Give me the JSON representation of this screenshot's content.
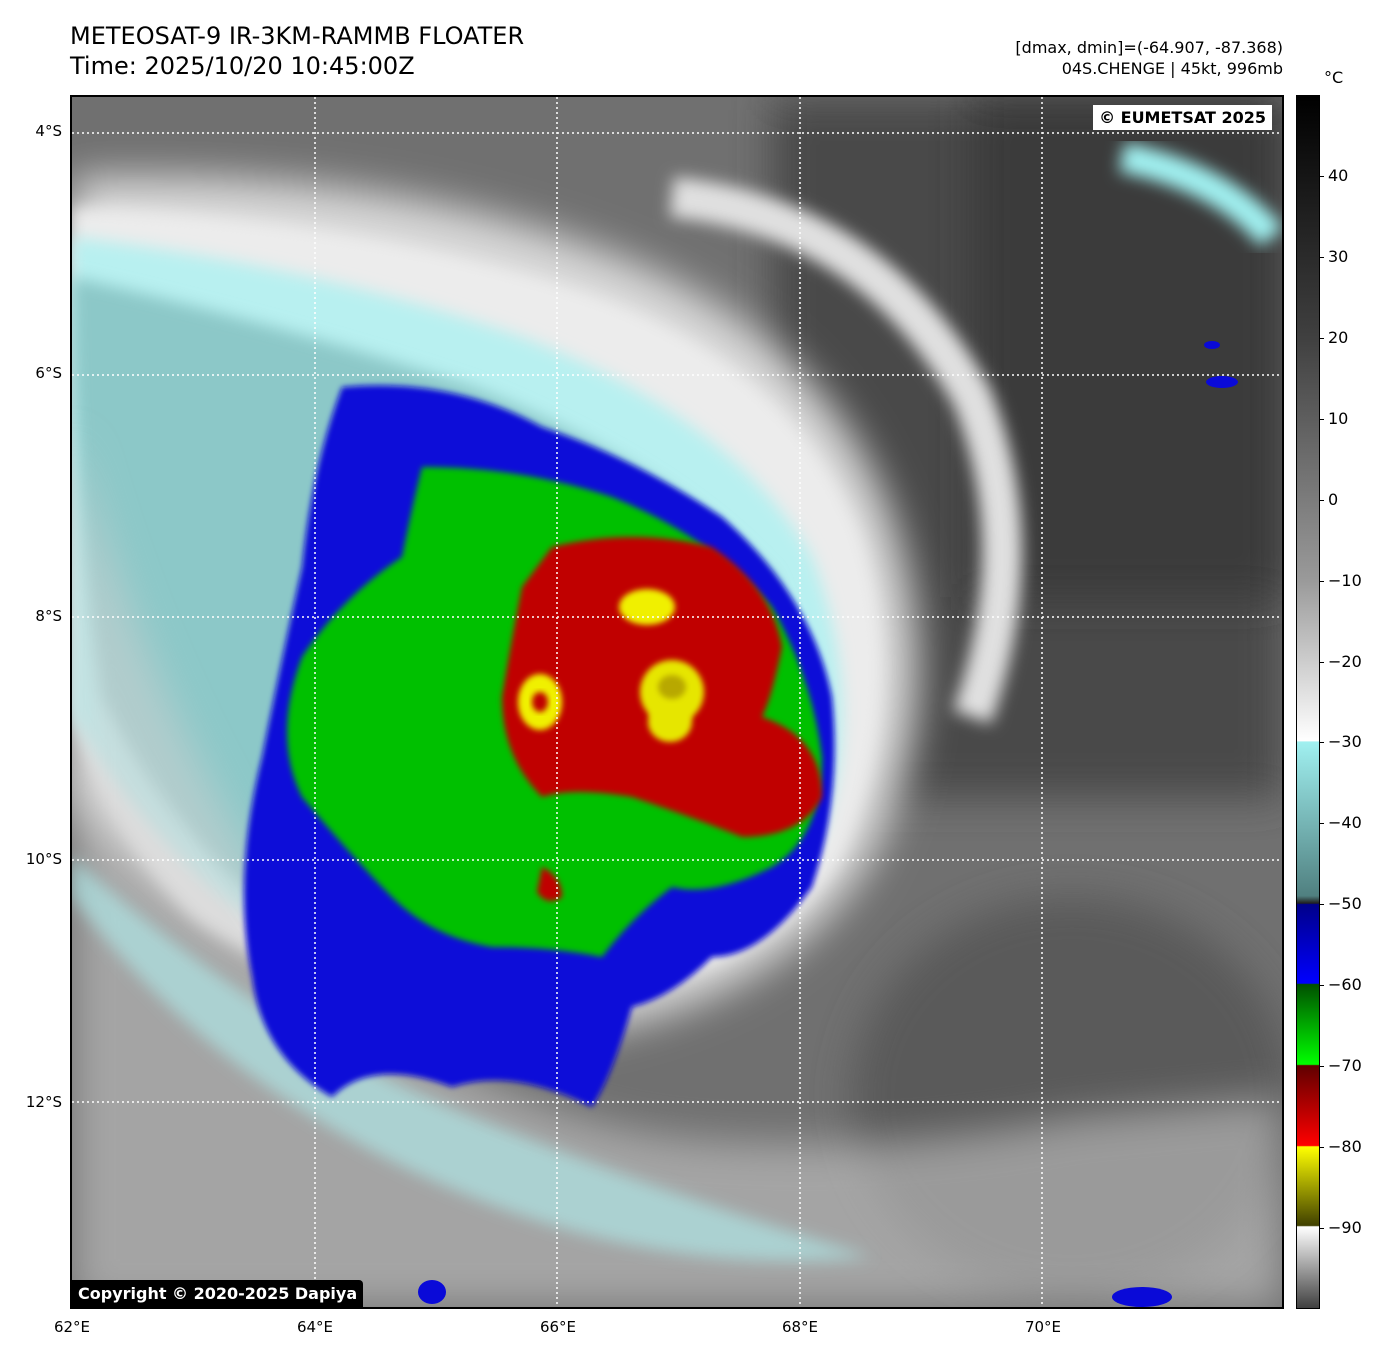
{
  "header": {
    "title_line1": "METEOSAT-9 IR-3KM-RAMMB FLOATER",
    "title_line2": "Time: 2025/10/20 10:45:00Z",
    "info_line1": "[dmax, dmin]=(-64.907, -87.368)",
    "info_line2": "04S.CHENGE | 45kt, 996mb"
  },
  "map": {
    "lon_range": [
      62,
      72
    ],
    "lat_range": [
      -3.7,
      -13.7
    ],
    "lat_labels": [
      {
        "lat": -4,
        "text": "4°S"
      },
      {
        "lat": -6,
        "text": "6°S"
      },
      {
        "lat": -8,
        "text": "8°S"
      },
      {
        "lat": -10,
        "text": "10°S"
      },
      {
        "lat": -12,
        "text": "12°S"
      }
    ],
    "lon_labels": [
      {
        "lon": 62,
        "text": "62°E"
      },
      {
        "lon": 64,
        "text": "64°E"
      },
      {
        "lon": 66,
        "text": "66°E"
      },
      {
        "lon": 68,
        "text": "68°E"
      },
      {
        "lon": 70,
        "text": "70°E"
      }
    ],
    "watermark_top": "© EUMETSAT 2025",
    "watermark_bottom": "Copyright © 2020-2025 Dapiya"
  },
  "colorbar": {
    "unit": "°C",
    "range": [
      50,
      -100
    ],
    "ticks": [
      "40",
      "30",
      "20",
      "10",
      "0",
      "−10",
      "−20",
      "−30",
      "−40",
      "−50",
      "−60",
      "−70",
      "−80",
      "−90"
    ],
    "tick_values": [
      40,
      30,
      20,
      10,
      0,
      -10,
      -20,
      -30,
      -40,
      -50,
      -60,
      -70,
      -80,
      -90
    ],
    "colors": {
      "warm_top": "#000000",
      "mid_gray": "#9a9a9a",
      "white": "#ffffff",
      "cyan": "#a0f0f0",
      "blue": "#0000d0",
      "green": "#00c000",
      "red": "#c00000",
      "yellow": "#f0f000"
    }
  }
}
